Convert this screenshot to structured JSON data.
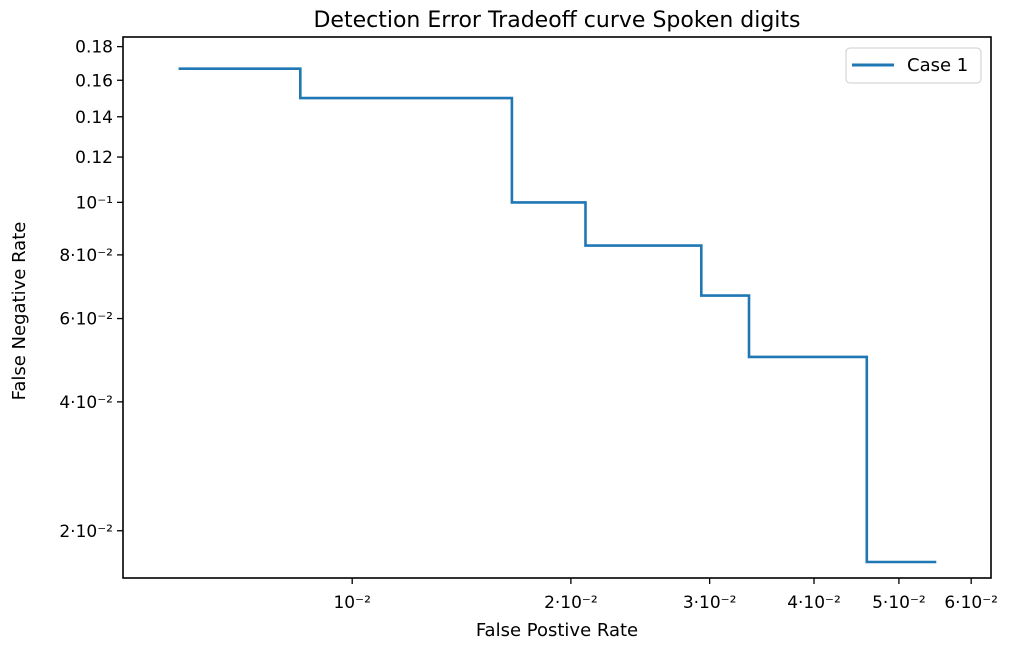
{
  "chart_data": {
    "type": "line",
    "drawstyle": "step",
    "title": "Detection Error Tradeoff curve Spoken digits",
    "xlabel": "False Postive Rate",
    "ylabel": "False Negative Rate",
    "xscale": "probit",
    "yscale": "probit",
    "xlim": [
      0.0045,
      0.063
    ],
    "ylim": [
      0.0152,
      0.186
    ],
    "xticks": [
      {
        "value": 0.01,
        "label": "10⁻²"
      },
      {
        "value": 0.02,
        "label": "2·10⁻²"
      },
      {
        "value": 0.03,
        "label": "3·10⁻²"
      },
      {
        "value": 0.04,
        "label": "4·10⁻²"
      },
      {
        "value": 0.05,
        "label": "5·10⁻²"
      },
      {
        "value": 0.06,
        "label": "6·10⁻²"
      }
    ],
    "yticks": [
      {
        "value": 0.02,
        "label": "2·10⁻²"
      },
      {
        "value": 0.04,
        "label": "4·10⁻²"
      },
      {
        "value": 0.06,
        "label": "6·10⁻²"
      },
      {
        "value": 0.08,
        "label": "8·10⁻²"
      },
      {
        "value": 0.1,
        "label": "10⁻¹"
      },
      {
        "value": 0.12,
        "label": "0.12"
      },
      {
        "value": 0.14,
        "label": "0.14"
      },
      {
        "value": 0.16,
        "label": "0.16"
      },
      {
        "value": 0.18,
        "label": "0.18"
      }
    ],
    "legend": {
      "position": "top-right"
    },
    "series": [
      {
        "name": "Case 1",
        "color": "#1f77b4",
        "points": [
          {
            "x": 0.0055,
            "y": 0.1667
          },
          {
            "x": 0.0084,
            "y": 0.1667
          },
          {
            "x": 0.0084,
            "y": 0.15
          },
          {
            "x": 0.0167,
            "y": 0.15
          },
          {
            "x": 0.0167,
            "y": 0.1
          },
          {
            "x": 0.0209,
            "y": 0.1
          },
          {
            "x": 0.0209,
            "y": 0.0833
          },
          {
            "x": 0.0293,
            "y": 0.0833
          },
          {
            "x": 0.0293,
            "y": 0.0667
          },
          {
            "x": 0.0335,
            "y": 0.0667
          },
          {
            "x": 0.0335,
            "y": 0.05
          },
          {
            "x": 0.046,
            "y": 0.05
          },
          {
            "x": 0.046,
            "y": 0.0167
          },
          {
            "x": 0.055,
            "y": 0.0167
          }
        ]
      }
    ]
  }
}
